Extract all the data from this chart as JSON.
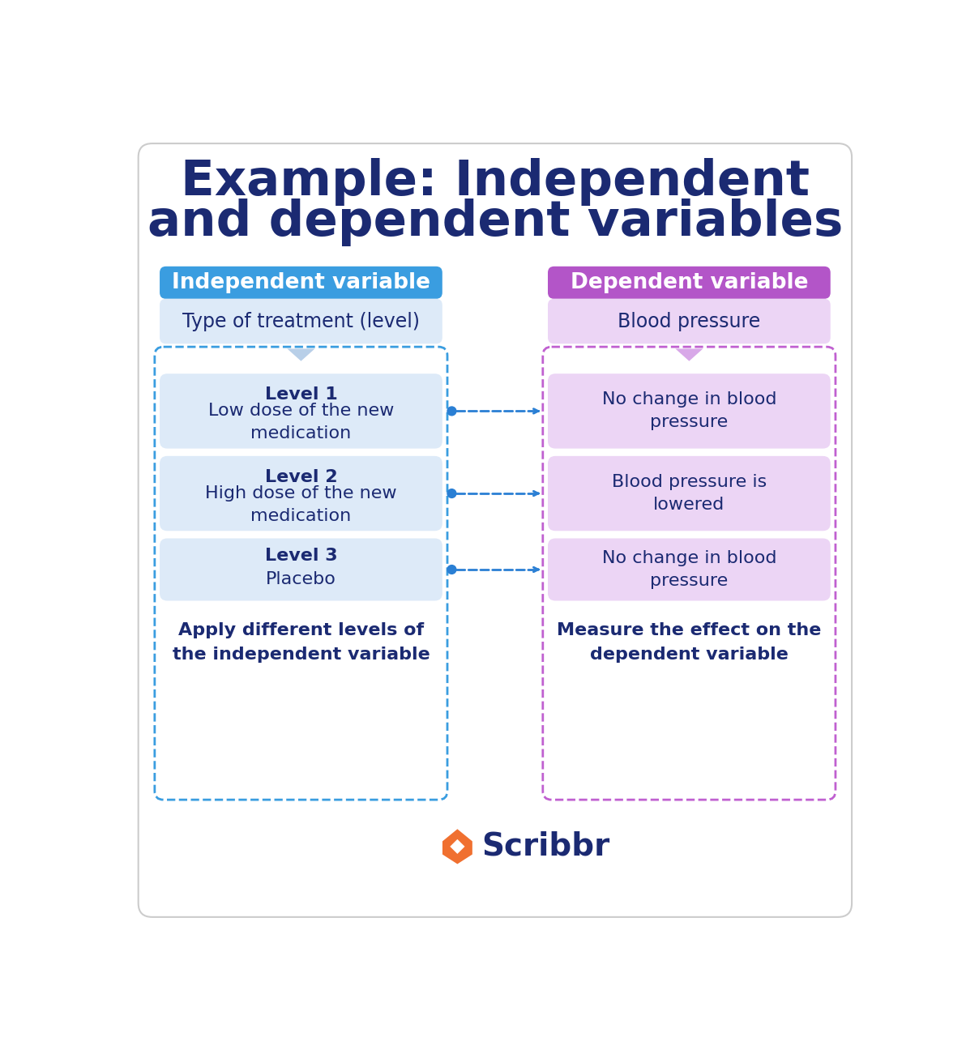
{
  "title_line1": "Example: Independent",
  "title_line2": "and dependent variables",
  "title_color": "#1b2a72",
  "title_fontsize": 44,
  "background_color": "#ffffff",
  "left_header_text": "Independent variable",
  "left_header_bg": "#3a9de0",
  "left_header_text_color": "#ffffff",
  "left_top_box_text": "Type of treatment (level)",
  "left_top_box_bg": "#ddeaf8",
  "left_levels": [
    {
      "bold": "Level 1",
      "normal": "Low dose of the new\nmedication"
    },
    {
      "bold": "Level 2",
      "normal": "High dose of the new\nmedication"
    },
    {
      "bold": "Level 3",
      "normal": "Placebo"
    }
  ],
  "left_level_box_bg": "#ddeaf8",
  "left_bottom_text": "Apply different levels of\nthe independent variable",
  "left_dashed_border_color": "#3a9de0",
  "right_header_text": "Dependent variable",
  "right_header_bg": "#b355c8",
  "right_header_text_color": "#ffffff",
  "right_top_box_text": "Blood pressure",
  "right_top_box_bg": "#ecd5f5",
  "right_levels": [
    "No change in blood\npressure",
    "Blood pressure is\nlowered",
    "No change in blood\npressure"
  ],
  "right_level_box_bg": "#ecd5f5",
  "right_bottom_text": "Measure the effect on the\ndependent variable",
  "right_dashed_border_color": "#c060d0",
  "arrow_color": "#2a7fd4",
  "chevron_left_color": "#b8cfe8",
  "chevron_right_color": "#d8a8e8",
  "text_dark": "#1b2a72",
  "scribbr_text": "Scribbr",
  "scribbr_color": "#1b2a72",
  "scribbr_orange": "#f07030"
}
